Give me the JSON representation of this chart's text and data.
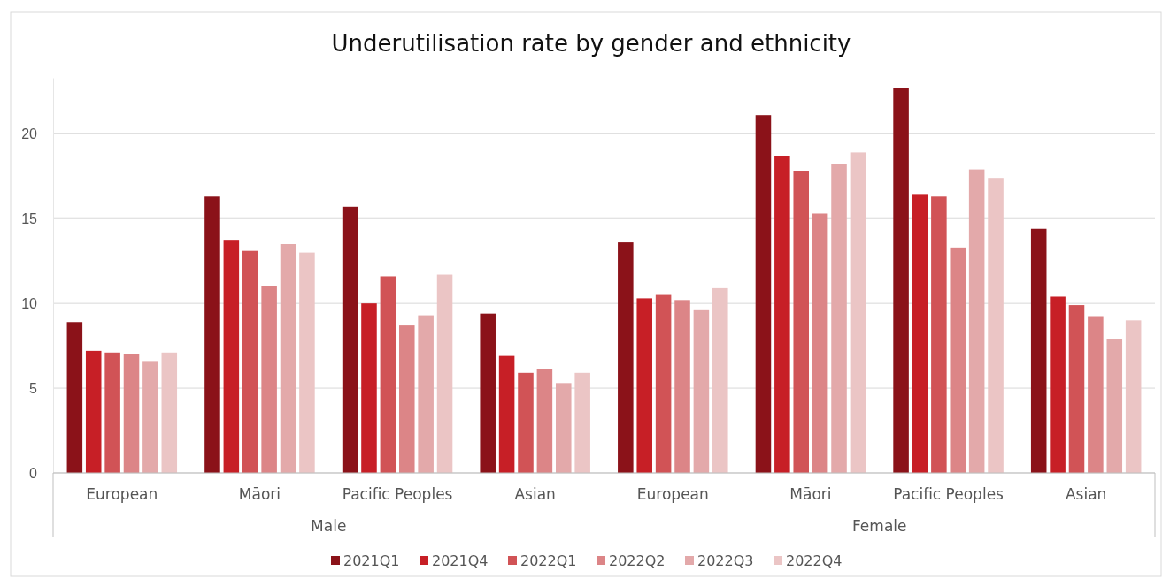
{
  "chart_data": {
    "type": "bar",
    "title": "Underutilisation rate by gender and ethnicity",
    "categories": [
      "European",
      "Māori",
      "Pacific Peoples",
      "Asian",
      "European",
      "Māori",
      "Pacific Peoples",
      "Asian"
    ],
    "annotations": [
      "Male",
      "Female"
    ],
    "series": [
      {
        "name": "2021Q1",
        "color": "#8b1219",
        "values": [
          8.9,
          16.3,
          15.7,
          9.4,
          13.6,
          21.1,
          22.7,
          14.4
        ]
      },
      {
        "name": "2021Q4",
        "color": "#c71f26",
        "values": [
          7.2,
          13.7,
          10.0,
          6.9,
          10.3,
          18.7,
          16.4,
          10.4
        ]
      },
      {
        "name": "2022Q1",
        "color": "#d15356",
        "values": [
          7.1,
          13.1,
          11.6,
          5.9,
          10.5,
          17.8,
          16.3,
          9.9
        ]
      },
      {
        "name": "2022Q2",
        "color": "#dc8587",
        "values": [
          7.0,
          11.0,
          8.7,
          6.1,
          10.2,
          15.3,
          13.3,
          9.2
        ]
      },
      {
        "name": "2022Q3",
        "color": "#e3a9aa",
        "values": [
          6.6,
          13.5,
          9.3,
          5.3,
          9.6,
          18.2,
          17.9,
          7.9
        ]
      },
      {
        "name": "2022Q4",
        "color": "#ebc5c5",
        "values": [
          7.1,
          13.0,
          11.7,
          5.9,
          10.9,
          18.9,
          17.4,
          9.0
        ]
      }
    ],
    "ylim": [
      0,
      23.3
    ],
    "yticks": [
      0,
      5,
      10,
      15,
      20
    ],
    "grid": "y",
    "legend": "bottom"
  }
}
